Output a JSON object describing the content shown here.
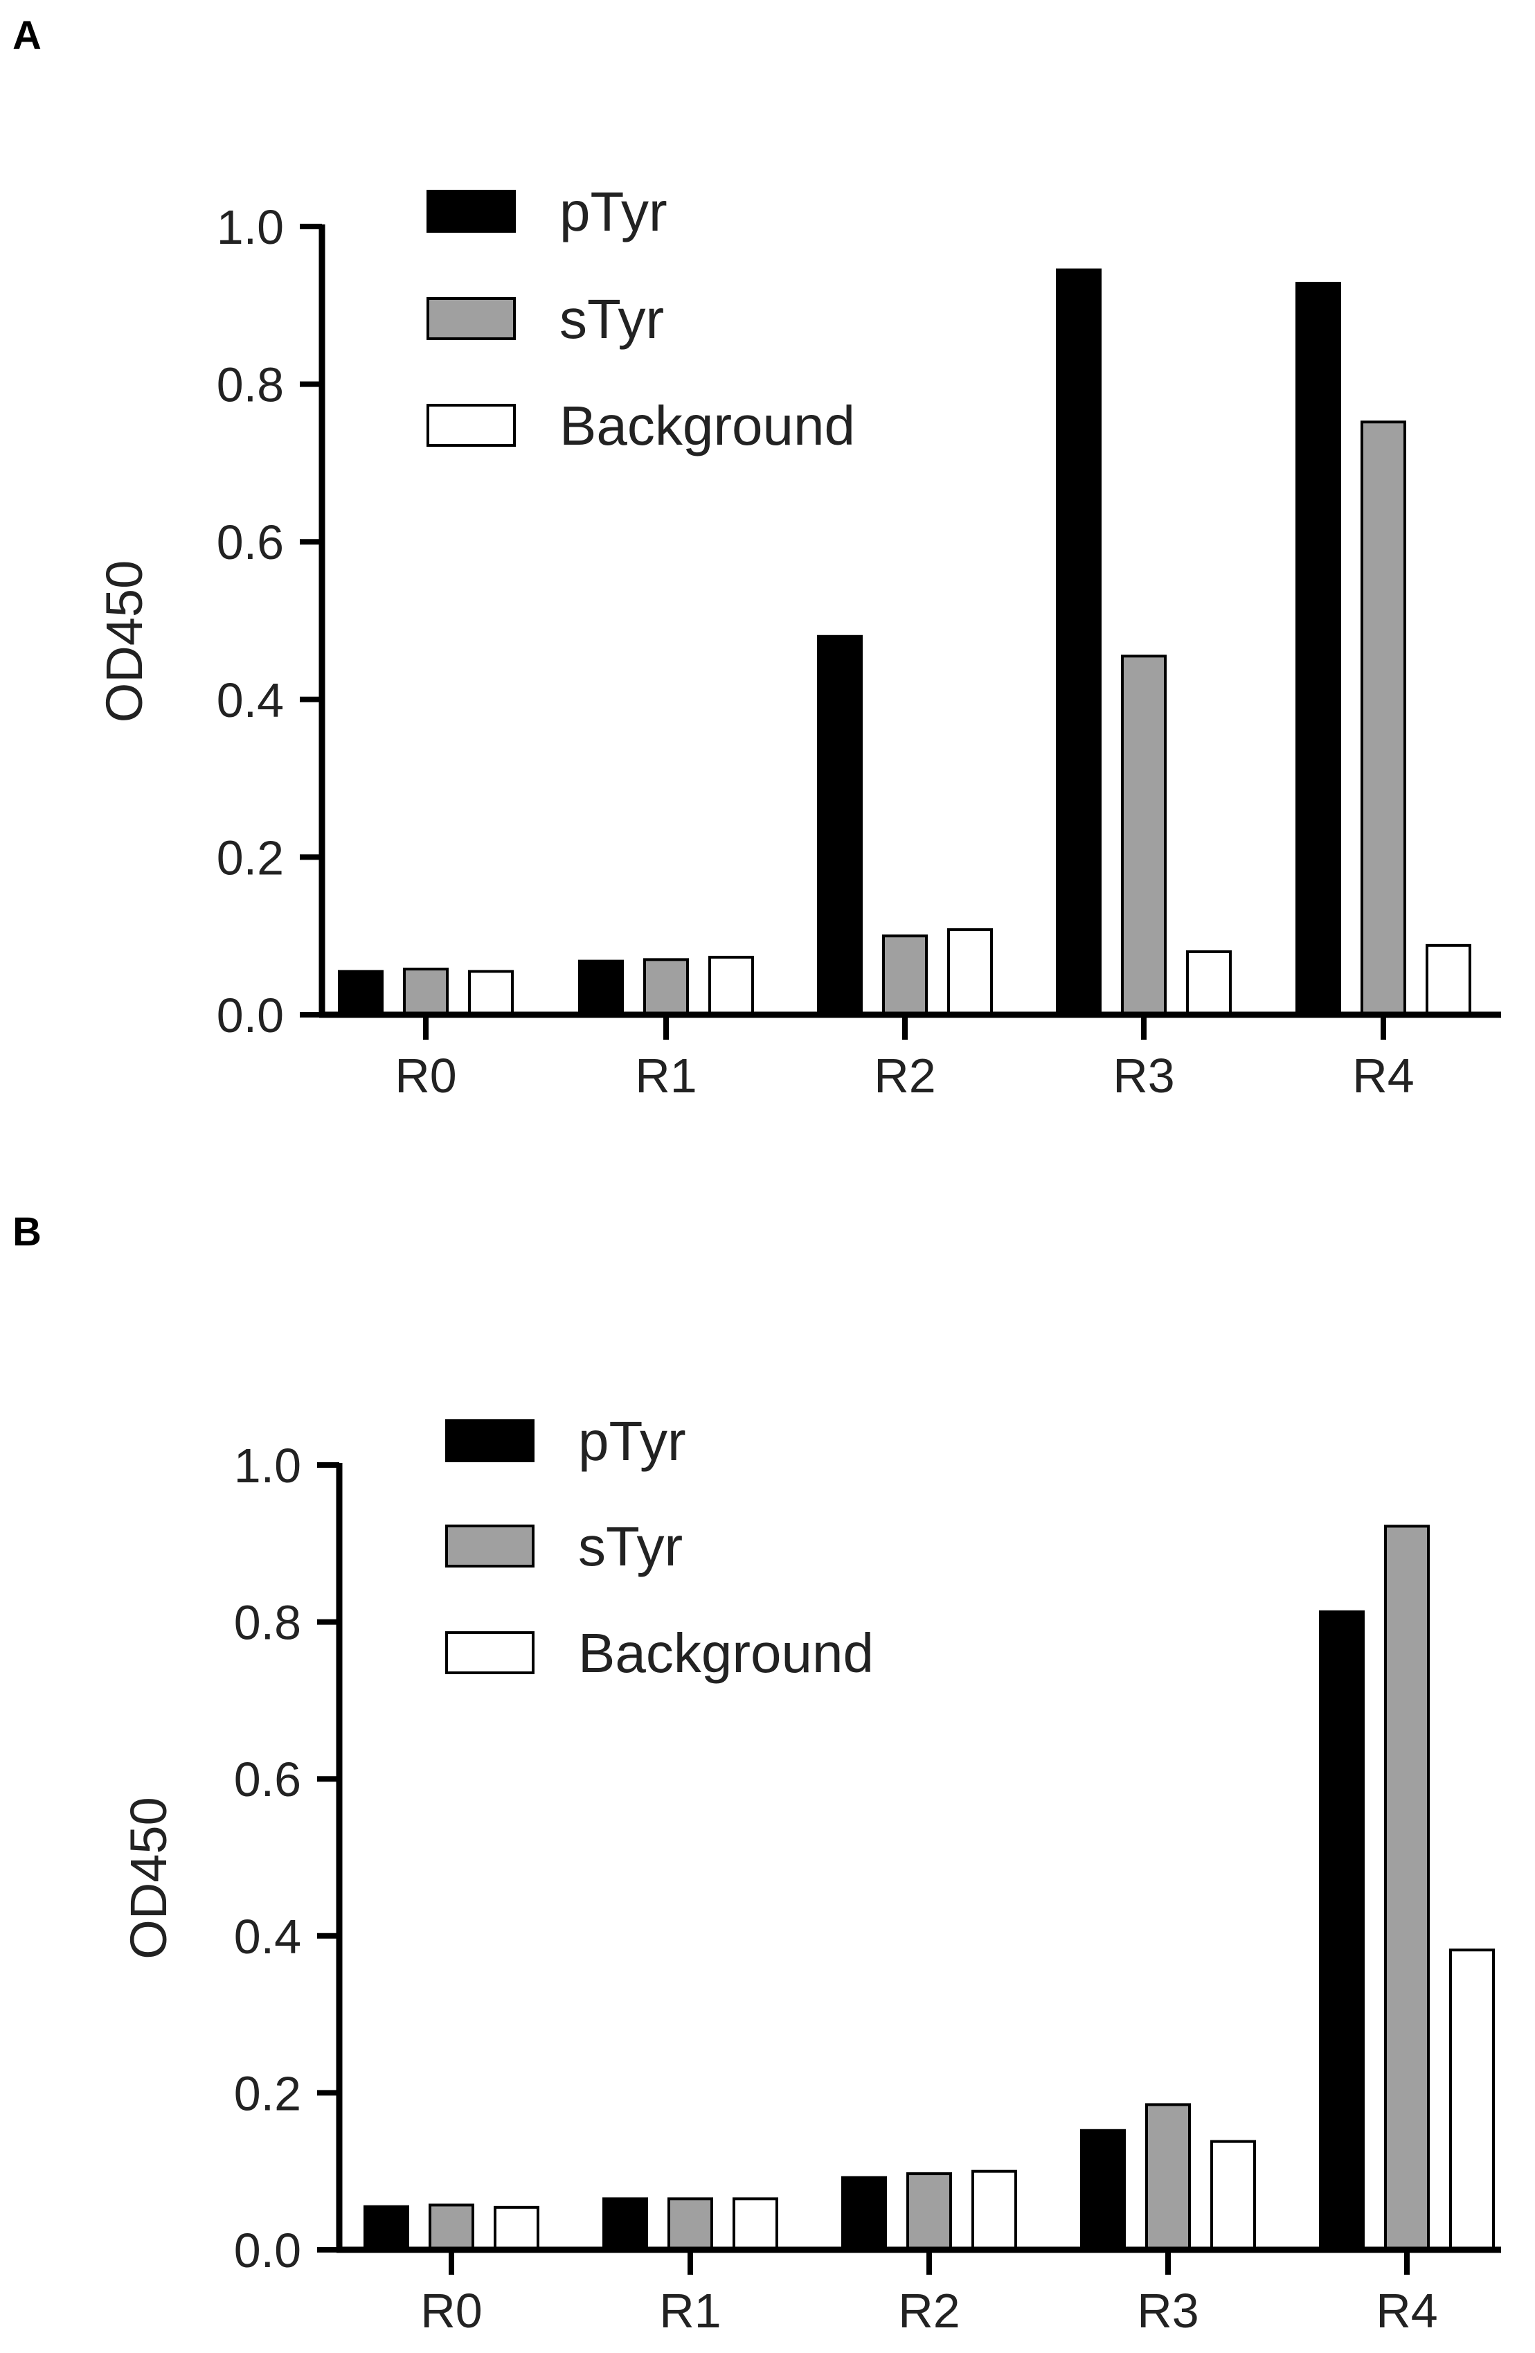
{
  "panels": {
    "a": {
      "letter": "A"
    },
    "b": {
      "letter": "B"
    }
  },
  "colors": {
    "pTyr": "#000000",
    "sTyr": "#a0a0a0",
    "Background": "#ffffff",
    "stroke": "#000000"
  },
  "chart_data": [
    {
      "type": "bar",
      "panel": "A",
      "categories": [
        "R0",
        "R1",
        "R2",
        "R3",
        "R4"
      ],
      "series": [
        {
          "name": "pTyr",
          "values": [
            0.055,
            0.068,
            0.48,
            0.945,
            0.928
          ]
        },
        {
          "name": "sTyr",
          "values": [
            0.058,
            0.07,
            0.1,
            0.455,
            0.752
          ]
        },
        {
          "name": "Background",
          "values": [
            0.055,
            0.073,
            0.108,
            0.08,
            0.088
          ]
        }
      ],
      "ylabel": "OD450",
      "ylim": [
        0,
        1.0
      ],
      "yticks": [
        "0.0",
        "0.2",
        "0.4",
        "0.6",
        "0.8",
        "1.0"
      ],
      "legend": "top-left",
      "grid": false
    },
    {
      "type": "bar",
      "panel": "B",
      "categories": [
        "R0",
        "R1",
        "R2",
        "R3",
        "R4"
      ],
      "series": [
        {
          "name": "pTyr",
          "values": [
            0.055,
            0.065,
            0.092,
            0.152,
            0.813
          ]
        },
        {
          "name": "sTyr",
          "values": [
            0.057,
            0.065,
            0.097,
            0.185,
            0.922
          ]
        },
        {
          "name": "Background",
          "values": [
            0.054,
            0.065,
            0.1,
            0.138,
            0.382
          ]
        }
      ],
      "ylabel": "OD450",
      "ylim": [
        0,
        1.0
      ],
      "yticks": [
        "0.0",
        "0.2",
        "0.4",
        "0.6",
        "0.8",
        "1.0"
      ],
      "legend": "top-left",
      "grid": false
    }
  ]
}
